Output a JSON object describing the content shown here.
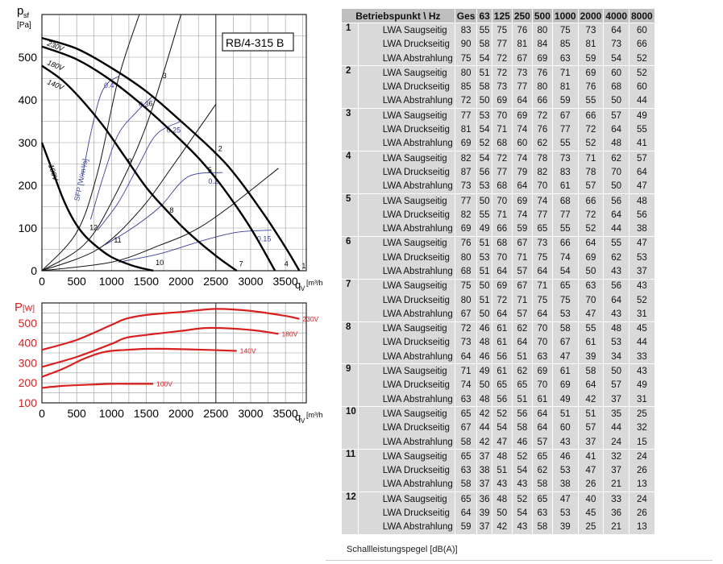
{
  "chart_data": [
    {
      "type": "line",
      "model_label": "RB/4-315 B",
      "ylabel_main": "p",
      "ylabel_sub": "sf",
      "ylabel_unit": "[Pa]",
      "xlabel_main": "q",
      "xlabel_sub": "V",
      "xlabel_unit": "[m³/h]",
      "xlim": [
        0,
        3800
      ],
      "ylim": [
        0,
        600
      ],
      "xticks": [
        0,
        500,
        1000,
        1500,
        2000,
        2500,
        3000,
        3500
      ],
      "yticks": [
        0,
        100,
        200,
        300,
        400,
        500
      ],
      "grid": true,
      "series": [
        {
          "name": "230V",
          "x": [
            0,
            500,
            1000,
            1500,
            2000,
            2500,
            2800,
            3200,
            3500,
            3700
          ],
          "y": [
            545,
            520,
            475,
            420,
            350,
            275,
            220,
            130,
            55,
            0
          ]
        },
        {
          "name": "180V",
          "x": [
            0,
            500,
            1000,
            1500,
            2000,
            2300,
            2600,
            3000,
            3350
          ],
          "y": [
            525,
            495,
            445,
            380,
            305,
            255,
            195,
            100,
            0
          ]
        },
        {
          "name": "140V",
          "x": [
            0,
            300,
            600,
            900,
            1200,
            1500,
            1800,
            2100,
            2500,
            2800
          ],
          "y": [
            480,
            445,
            395,
            335,
            265,
            195,
            140,
            90,
            35,
            0
          ]
        },
        {
          "name": "100V",
          "x": [
            0,
            150,
            300,
            450,
            600,
            800,
            1000,
            1300,
            1600
          ],
          "y": [
            300,
            235,
            170,
            120,
            85,
            55,
            32,
            12,
            0
          ]
        }
      ],
      "sfp_label": "SFP [W/m³/s]",
      "sfp_lines": [
        {
          "name": "0.4",
          "x": [
            580,
            700,
            830,
            950,
            1100
          ],
          "y": [
            220,
            320,
            405,
            440,
            455
          ]
        },
        {
          "name": "0.3",
          "x": [
            700,
            900,
            1100,
            1350,
            1600
          ],
          "y": [
            120,
            230,
            320,
            370,
            410
          ]
        },
        {
          "name": "0.25",
          "x": [
            800,
            1100,
            1400,
            1650,
            2000
          ],
          "y": [
            95,
            160,
            250,
            320,
            350
          ]
        },
        {
          "name": "0.2",
          "x": [
            900,
            1300,
            1700,
            2100,
            2600
          ],
          "y": [
            60,
            100,
            150,
            220,
            230
          ]
        },
        {
          "name": "0.15",
          "x": [
            1100,
            1700,
            2300,
            2800,
            3300
          ],
          "y": [
            20,
            40,
            70,
            90,
            95
          ]
        }
      ],
      "system_curves": [
        {
          "points": [
            "1",
            "2",
            "3",
            "4"
          ],
          "x": [
            0,
            1000,
            1700,
            2200,
            2700,
            3400
          ],
          "y": [
            0,
            20,
            60,
            95,
            150,
            240
          ]
        },
        {
          "points": [
            "5",
            "6",
            "7"
          ],
          "x": [
            0,
            800,
            1400,
            1900,
            2500
          ],
          "y": [
            0,
            50,
            140,
            250,
            390
          ]
        },
        {
          "points": [
            "8",
            "9",
            "10"
          ],
          "x": [
            0,
            600,
            1000,
            1500,
            2000
          ],
          "y": [
            0,
            60,
            160,
            340,
            600
          ]
        },
        {
          "points": [
            "11",
            "12"
          ],
          "x": [
            0,
            500,
            800,
            1100,
            1400
          ],
          "y": [
            0,
            90,
            230,
            450,
            600
          ]
        }
      ],
      "operating_points": [
        {
          "label": "1",
          "x": 3700,
          "y": 0
        },
        {
          "label": "2",
          "x": 2500,
          "y": 275
        },
        {
          "label": "3",
          "x": 1700,
          "y": 445
        },
        {
          "label": "4",
          "x": 3450,
          "y": 5
        },
        {
          "label": "5",
          "x": 2350,
          "y": 225
        },
        {
          "label": "6",
          "x": 1500,
          "y": 380
        },
        {
          "label": "7",
          "x": 2800,
          "y": 5
        },
        {
          "label": "8",
          "x": 1800,
          "y": 130
        },
        {
          "label": "9",
          "x": 1200,
          "y": 245
        },
        {
          "label": "10",
          "x": 1600,
          "y": 8
        },
        {
          "label": "11",
          "x": 1000,
          "y": 60
        },
        {
          "label": "12",
          "x": 650,
          "y": 90
        }
      ]
    },
    {
      "type": "line",
      "ylabel_main": "P",
      "ylabel_unit": "[W]",
      "xlabel_main": "q",
      "xlabel_sub": "V",
      "xlabel_unit": "[m³/h]",
      "xlim": [
        0,
        3800
      ],
      "ylim": [
        100,
        600
      ],
      "xticks": [
        0,
        500,
        1000,
        1500,
        2000,
        2500,
        3000,
        3500
      ],
      "yticks": [
        100,
        200,
        300,
        400,
        500
      ],
      "grid": true,
      "color": "#d92020",
      "series": [
        {
          "name": "230V",
          "x": [
            0,
            500,
            1000,
            1200,
            1500,
            2000,
            2500,
            3000,
            3500,
            3700
          ],
          "y": [
            365,
            415,
            490,
            520,
            540,
            555,
            570,
            560,
            535,
            520
          ]
        },
        {
          "name": "180V",
          "x": [
            0,
            500,
            1000,
            1200,
            1500,
            2000,
            2400,
            3000,
            3400
          ],
          "y": [
            280,
            330,
            395,
            425,
            440,
            460,
            475,
            465,
            445
          ]
        },
        {
          "name": "140V",
          "x": [
            0,
            300,
            600,
            900,
            1200,
            1500,
            1800,
            2400,
            2800
          ],
          "y": [
            230,
            270,
            320,
            355,
            365,
            370,
            370,
            365,
            360
          ]
        },
        {
          "name": "100V",
          "x": [
            0,
            300,
            600,
            1000,
            1300,
            1600
          ],
          "y": [
            175,
            185,
            190,
            195,
            195,
            195
          ]
        }
      ]
    }
  ],
  "table": {
    "headers": [
      "Betriebspunkt \\ Hz",
      "Ges",
      "63",
      "125",
      "250",
      "500",
      "1000",
      "2000",
      "4000",
      "8000"
    ],
    "rows": [
      {
        "point": "1",
        "rows": [
          {
            "label": "LWA Saugseitig",
            "values": [
              "83",
              "55",
              "75",
              "76",
              "80",
              "75",
              "73",
              "64",
              "60"
            ]
          },
          {
            "label": "LWA Druckseitig",
            "values": [
              "90",
              "58",
              "77",
              "81",
              "84",
              "85",
              "81",
              "73",
              "66"
            ]
          },
          {
            "label": "LWA Abstrahlung",
            "values": [
              "75",
              "54",
              "72",
              "67",
              "69",
              "63",
              "59",
              "54",
              "52"
            ]
          }
        ]
      },
      {
        "point": "2",
        "rows": [
          {
            "label": "LWA Saugseitig",
            "values": [
              "80",
              "51",
              "72",
              "73",
              "76",
              "71",
              "69",
              "60",
              "52"
            ]
          },
          {
            "label": "LWA Druckseitig",
            "values": [
              "85",
              "58",
              "73",
              "77",
              "80",
              "81",
              "76",
              "68",
              "60"
            ]
          },
          {
            "label": "LWA Abstrahlung",
            "values": [
              "72",
              "50",
              "69",
              "64",
              "66",
              "59",
              "55",
              "50",
              "44"
            ]
          }
        ]
      },
      {
        "point": "3",
        "rows": [
          {
            "label": "LWA Saugseitig",
            "values": [
              "77",
              "53",
              "70",
              "69",
              "72",
              "67",
              "66",
              "57",
              "49"
            ]
          },
          {
            "label": "LWA Druckseitig",
            "values": [
              "81",
              "54",
              "71",
              "74",
              "76",
              "77",
              "72",
              "64",
              "55"
            ]
          },
          {
            "label": "LWA Abstrahlung",
            "values": [
              "69",
              "52",
              "68",
              "60",
              "62",
              "55",
              "52",
              "48",
              "41"
            ]
          }
        ]
      },
      {
        "point": "4",
        "rows": [
          {
            "label": "LWA Saugseitig",
            "values": [
              "82",
              "54",
              "72",
              "74",
              "78",
              "73",
              "71",
              "62",
              "57"
            ]
          },
          {
            "label": "LWA Druckseitig",
            "values": [
              "87",
              "56",
              "77",
              "79",
              "82",
              "83",
              "78",
              "70",
              "64"
            ]
          },
          {
            "label": "LWA Abstrahlung",
            "values": [
              "73",
              "53",
              "68",
              "64",
              "70",
              "61",
              "57",
              "50",
              "47"
            ]
          }
        ]
      },
      {
        "point": "5",
        "rows": [
          {
            "label": "LWA Saugseitig",
            "values": [
              "77",
              "50",
              "70",
              "69",
              "74",
              "68",
              "66",
              "56",
              "48"
            ]
          },
          {
            "label": "LWA Druckseitig",
            "values": [
              "82",
              "55",
              "71",
              "74",
              "77",
              "77",
              "72",
              "64",
              "56"
            ]
          },
          {
            "label": "LWA Abstrahlung",
            "values": [
              "69",
              "49",
              "66",
              "59",
              "65",
              "55",
              "52",
              "44",
              "38"
            ]
          }
        ]
      },
      {
        "point": "6",
        "rows": [
          {
            "label": "LWA Saugseitig",
            "values": [
              "76",
              "51",
              "68",
              "67",
              "73",
              "66",
              "64",
              "55",
              "47"
            ]
          },
          {
            "label": "LWA Druckseitig",
            "values": [
              "80",
              "53",
              "70",
              "71",
              "75",
              "74",
              "69",
              "62",
              "53"
            ]
          },
          {
            "label": "LWA Abstrahlung",
            "values": [
              "68",
              "51",
              "64",
              "57",
              "64",
              "54",
              "50",
              "43",
              "37"
            ]
          }
        ]
      },
      {
        "point": "7",
        "rows": [
          {
            "label": "LWA Saugseitig",
            "values": [
              "75",
              "50",
              "69",
              "67",
              "71",
              "65",
              "63",
              "56",
              "43"
            ]
          },
          {
            "label": "LWA Druckseitig",
            "values": [
              "80",
              "51",
              "72",
              "71",
              "75",
              "75",
              "70",
              "64",
              "52"
            ]
          },
          {
            "label": "LWA Abstrahlung",
            "values": [
              "67",
              "50",
              "64",
              "57",
              "64",
              "53",
              "47",
              "43",
              "31"
            ]
          }
        ]
      },
      {
        "point": "8",
        "rows": [
          {
            "label": "LWA Saugseitig",
            "values": [
              "72",
              "46",
              "61",
              "62",
              "70",
              "58",
              "55",
              "48",
              "45"
            ]
          },
          {
            "label": "LWA Druckseitig",
            "values": [
              "73",
              "48",
              "61",
              "64",
              "70",
              "67",
              "61",
              "53",
              "44"
            ]
          },
          {
            "label": "LWA Abstrahlung",
            "values": [
              "64",
              "46",
              "56",
              "51",
              "63",
              "47",
              "39",
              "34",
              "33"
            ]
          }
        ]
      },
      {
        "point": "9",
        "rows": [
          {
            "label": "LWA Saugseitig",
            "values": [
              "71",
              "49",
              "61",
              "62",
              "69",
              "61",
              "58",
              "50",
              "43"
            ]
          },
          {
            "label": "LWA Druckseitig",
            "values": [
              "74",
              "50",
              "65",
              "65",
              "70",
              "69",
              "64",
              "57",
              "49"
            ]
          },
          {
            "label": "LWA Abstrahlung",
            "values": [
              "63",
              "48",
              "56",
              "51",
              "61",
              "49",
              "42",
              "37",
              "31"
            ]
          }
        ]
      },
      {
        "point": "10",
        "rows": [
          {
            "label": "LWA Saugseitig",
            "values": [
              "65",
              "42",
              "52",
              "56",
              "64",
              "51",
              "51",
              "35",
              "25"
            ]
          },
          {
            "label": "LWA Druckseitig",
            "values": [
              "67",
              "44",
              "54",
              "58",
              "64",
              "60",
              "57",
              "44",
              "32"
            ]
          },
          {
            "label": "LWA Abstrahlung",
            "values": [
              "58",
              "42",
              "47",
              "46",
              "57",
              "43",
              "37",
              "24",
              "15"
            ]
          }
        ]
      },
      {
        "point": "11",
        "rows": [
          {
            "label": "LWA Saugseitig",
            "values": [
              "65",
              "37",
              "48",
              "52",
              "65",
              "46",
              "41",
              "32",
              "24"
            ]
          },
          {
            "label": "LWA Druckseitig",
            "values": [
              "63",
              "38",
              "51",
              "54",
              "62",
              "53",
              "47",
              "37",
              "26"
            ]
          },
          {
            "label": "LWA Abstrahlung",
            "values": [
              "58",
              "37",
              "43",
              "43",
              "58",
              "38",
              "26",
              "21",
              "13"
            ]
          }
        ]
      },
      {
        "point": "12",
        "rows": [
          {
            "label": "LWA Saugseitig",
            "values": [
              "65",
              "36",
              "48",
              "52",
              "65",
              "47",
              "40",
              "33",
              "24"
            ]
          },
          {
            "label": "LWA Druckseitig",
            "values": [
              "64",
              "39",
              "50",
              "54",
              "63",
              "53",
              "45",
              "36",
              "26"
            ]
          },
          {
            "label": "LWA Abstrahlung",
            "values": [
              "59",
              "37",
              "42",
              "43",
              "58",
              "39",
              "25",
              "21",
              "13"
            ]
          }
        ]
      }
    ]
  },
  "caption": "Schallleistungspegel [dB(A)]"
}
